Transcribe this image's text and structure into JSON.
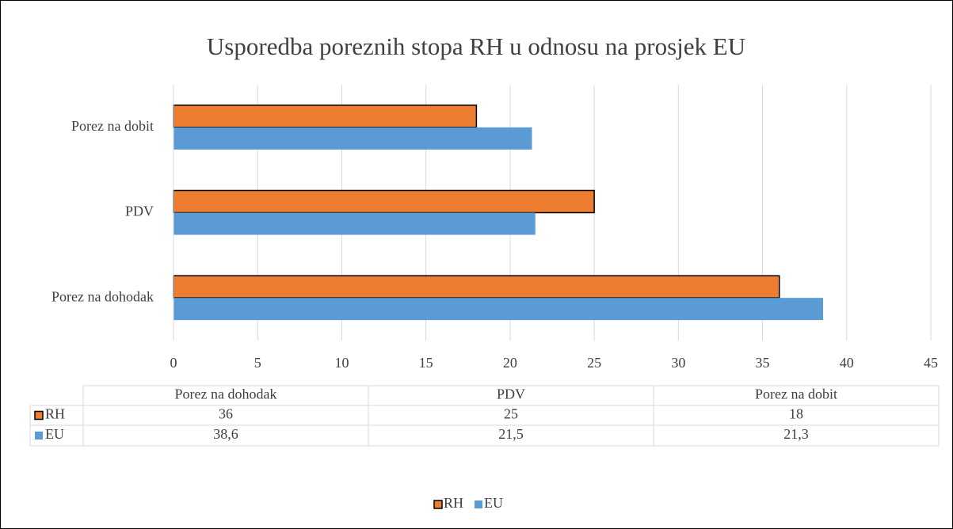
{
  "chart_data": {
    "type": "bar",
    "orientation": "horizontal",
    "title": "Usporedba poreznih stopa RH u odnosu na prosjek EU",
    "categories": [
      "Porez na dohodak",
      "PDV",
      "Porez na dobit"
    ],
    "series": [
      {
        "name": "RH",
        "color": "#ed7d31",
        "edge_color": "#000000",
        "values": [
          36,
          25,
          18
        ]
      },
      {
        "name": "EU",
        "color": "#5b9bd5",
        "values": [
          38.6,
          21.5,
          21.3
        ],
        "value_labels": [
          "38,6",
          "21,5",
          "21,3"
        ]
      }
    ],
    "xlim": [
      0,
      45
    ],
    "xticks": [
      0,
      5,
      10,
      15,
      20,
      25,
      30,
      35,
      40,
      45
    ],
    "grid": true,
    "data_table": true,
    "legend": "bottom"
  }
}
